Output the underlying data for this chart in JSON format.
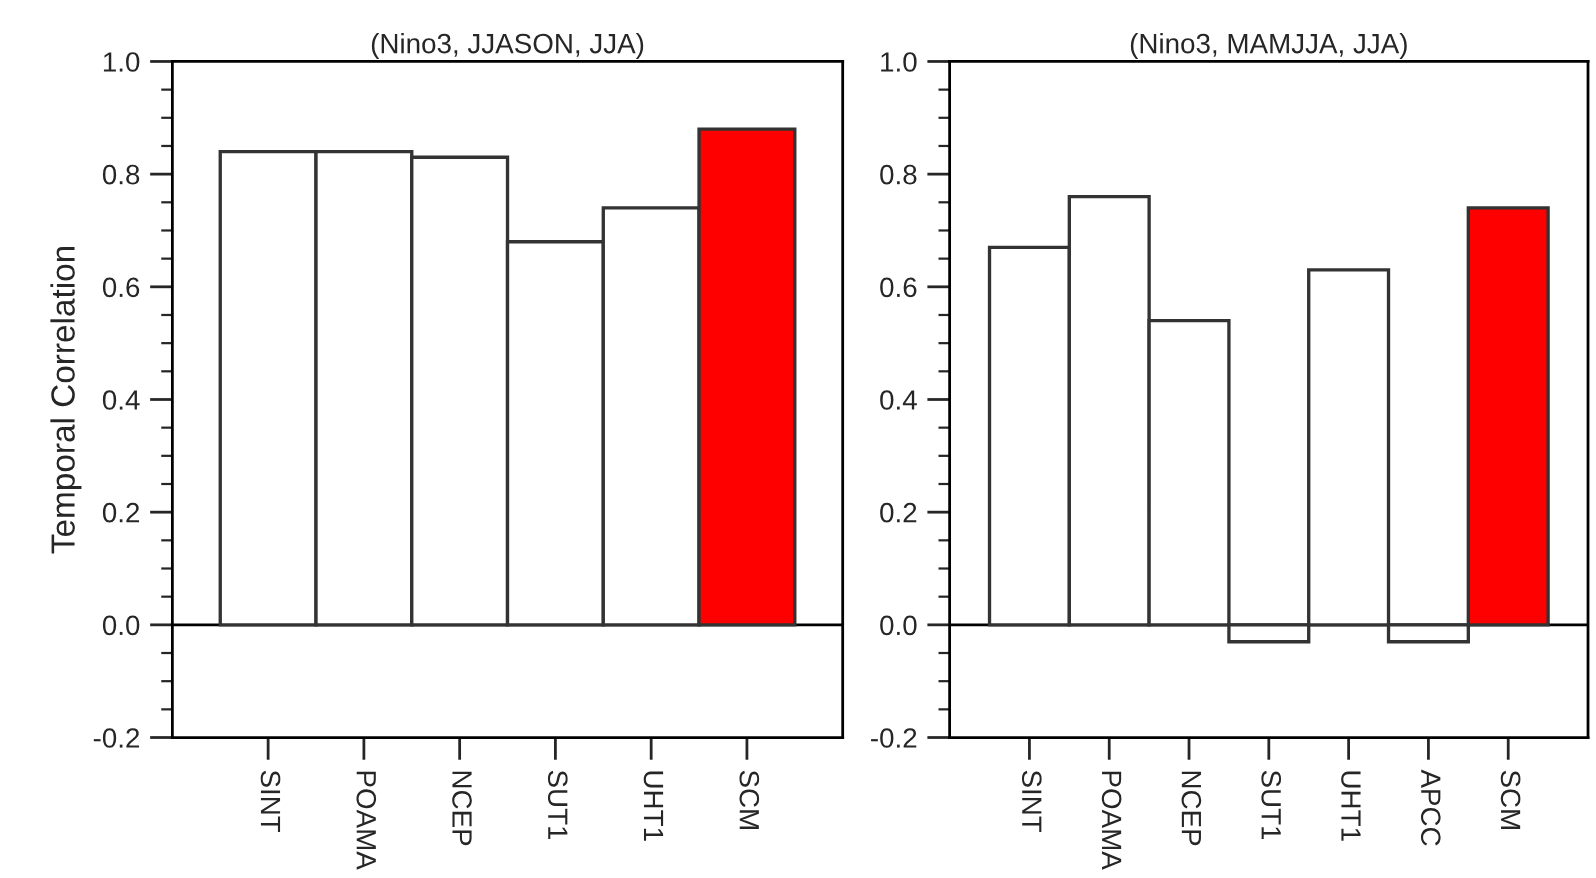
{
  "chart_data": [
    {
      "type": "bar",
      "title": "(Nino3, JJASON, JJA)",
      "ylabel": "Temporal Correlation",
      "categories": [
        "SINT",
        "POAMA",
        "NCEP",
        "SUT1",
        "UHT1",
        "SCM"
      ],
      "values": [
        0.84,
        0.84,
        0.83,
        0.68,
        0.74,
        0.88
      ],
      "colors": [
        "#ffffff",
        "#ffffff",
        "#ffffff",
        "#ffffff",
        "#ffffff",
        "#ff0000"
      ],
      "ylim": [
        -0.2,
        1.0
      ],
      "yticks": [
        {
          "value": -0.2,
          "label": "-0.2"
        },
        {
          "value": 0.0,
          "label": "0.0"
        },
        {
          "value": 0.2,
          "label": "0.2"
        },
        {
          "value": 0.4,
          "label": "0.4"
        },
        {
          "value": 0.6,
          "label": "0.6"
        },
        {
          "value": 0.8,
          "label": "0.8"
        },
        {
          "value": 1.0,
          "label": "1.0"
        }
      ],
      "ref_lines": [
        {
          "axis": "y",
          "value": 0,
          "color": "#000000"
        }
      ],
      "grid": false,
      "legend": false
    },
    {
      "type": "bar",
      "title": "(Nino3, MAMJJA, JJA)",
      "categories": [
        "SINT",
        "POAMA",
        "NCEP",
        "SUT1",
        "UHT1",
        "APCC",
        "SCM"
      ],
      "values": [
        0.67,
        0.76,
        0.54,
        -0.03,
        0.63,
        -0.03,
        0.74
      ],
      "colors": [
        "#ffffff",
        "#ffffff",
        "#ffffff",
        "#ffffff",
        "#ffffff",
        "#ffffff",
        "#ff0000"
      ],
      "ylim": [
        -0.2,
        1.0
      ],
      "yticks": [
        {
          "value": -0.2,
          "label": "-0.2"
        },
        {
          "value": 0.0,
          "label": "0.0"
        },
        {
          "value": 0.2,
          "label": "0.2"
        },
        {
          "value": 0.4,
          "label": "0.4"
        },
        {
          "value": 0.6,
          "label": "0.6"
        },
        {
          "value": 0.8,
          "label": "0.8"
        },
        {
          "value": 1.0,
          "label": "1.0"
        }
      ],
      "ref_lines": [
        {
          "axis": "y",
          "value": 0,
          "color": "#000000"
        }
      ],
      "grid": false,
      "legend": false
    }
  ]
}
